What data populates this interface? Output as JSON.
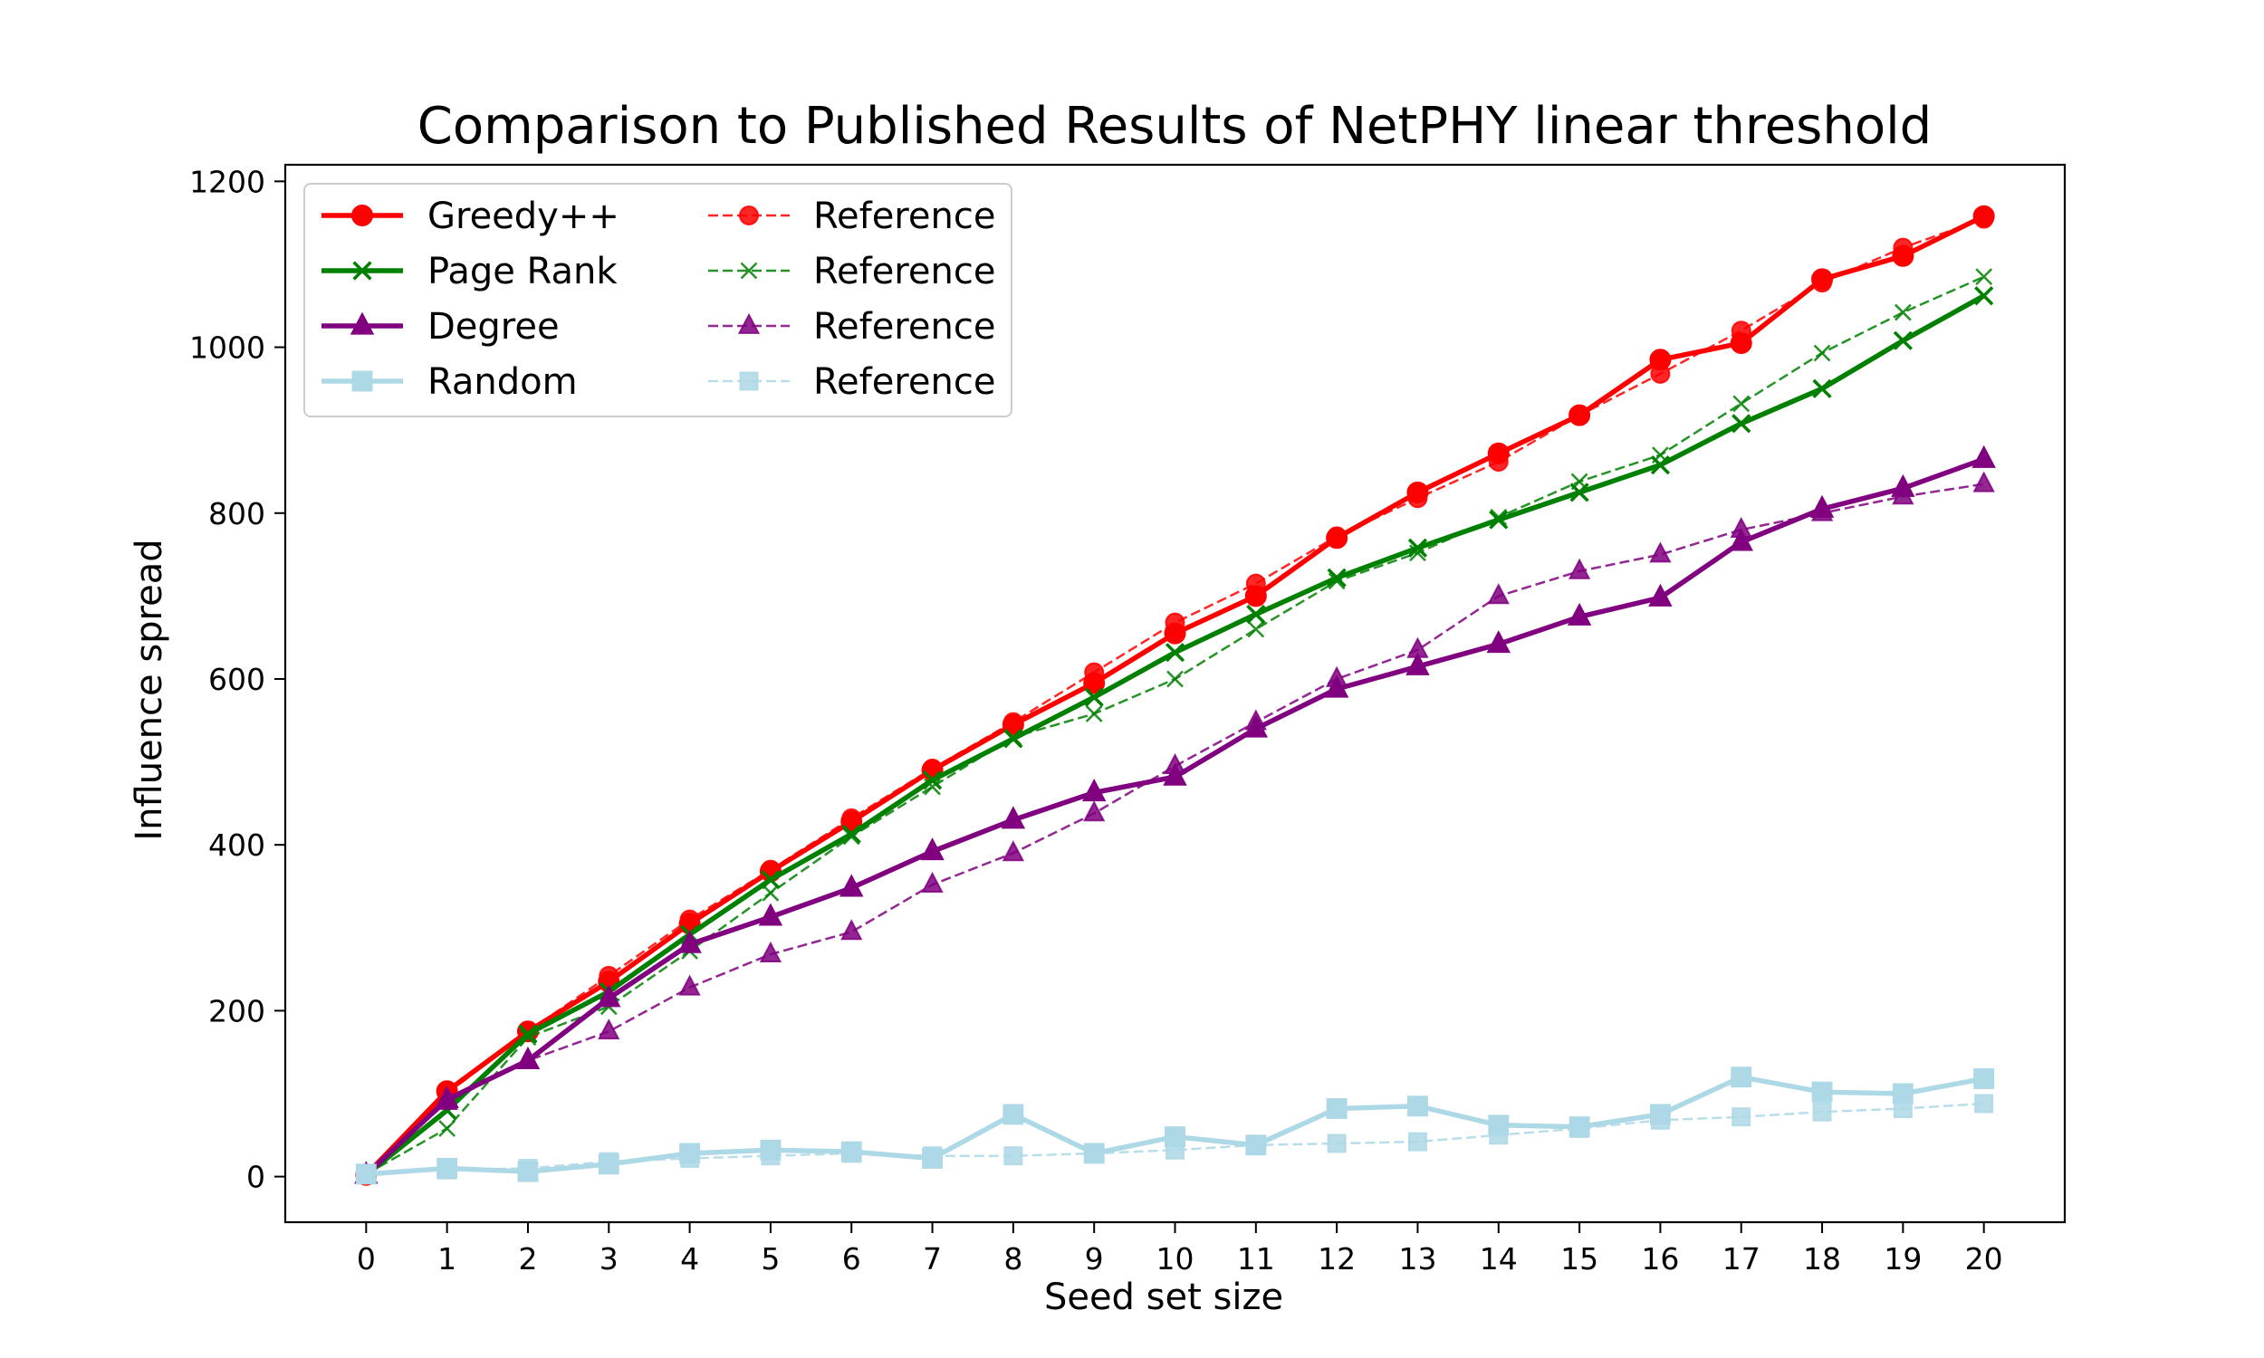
{
  "chart_data": {
    "type": "line",
    "title": "Comparison to Published Results of NetPHY linear threshold",
    "xlabel": "Seed set size",
    "ylabel": "Influence spread",
    "xlim": [
      -1,
      21
    ],
    "ylim": [
      -55,
      1220
    ],
    "xticks": [
      0,
      1,
      2,
      3,
      4,
      5,
      6,
      7,
      8,
      9,
      10,
      11,
      12,
      13,
      14,
      15,
      16,
      17,
      18,
      19,
      20
    ],
    "yticks": [
      0,
      200,
      400,
      600,
      800,
      1000,
      1200
    ],
    "grid": false,
    "legend_position": "top-left",
    "x": [
      0,
      1,
      2,
      3,
      4,
      5,
      6,
      7,
      8,
      9,
      10,
      11,
      12,
      13,
      14,
      15,
      16,
      17,
      18,
      19,
      20
    ],
    "series": [
      {
        "name": "Greedy++",
        "color": "#ff0000",
        "style": "solid",
        "marker": "circle",
        "values": [
          2,
          103,
          175,
          235,
          305,
          368,
          428,
          490,
          545,
          595,
          655,
          700,
          770,
          825,
          872,
          918,
          985,
          1005,
          1082,
          1110,
          1158
        ]
      },
      {
        "name": "Page Rank",
        "color": "#008000",
        "style": "solid",
        "marker": "x",
        "values": [
          2,
          80,
          172,
          223,
          292,
          358,
          413,
          478,
          528,
          578,
          632,
          678,
          722,
          758,
          792,
          825,
          858,
          908,
          950,
          1008,
          1062
        ]
      },
      {
        "name": "Degree",
        "color": "#800080",
        "style": "solid",
        "marker": "triangle",
        "values": [
          2,
          93,
          140,
          215,
          280,
          313,
          348,
          392,
          430,
          463,
          482,
          540,
          588,
          615,
          642,
          675,
          698,
          765,
          805,
          830,
          865
        ]
      },
      {
        "name": "Random",
        "color": "#add8e6",
        "style": "solid",
        "marker": "square",
        "values": [
          3,
          10,
          6,
          15,
          28,
          32,
          30,
          22,
          75,
          28,
          48,
          38,
          82,
          85,
          62,
          60,
          75,
          120,
          102,
          100,
          118
        ]
      },
      {
        "name": "Reference",
        "color": "#ff0000",
        "style": "dashed",
        "marker": "circle",
        "values": [
          3,
          100,
          175,
          242,
          310,
          370,
          432,
          492,
          548,
          608,
          668,
          715,
          772,
          818,
          862,
          918,
          968,
          1020,
          1078,
          1120,
          1155
        ]
      },
      {
        "name": "Reference",
        "color": "#008000",
        "style": "dashed",
        "marker": "x",
        "values": [
          3,
          58,
          168,
          205,
          272,
          342,
          410,
          470,
          530,
          558,
          600,
          660,
          718,
          752,
          795,
          838,
          870,
          932,
          993,
          1042,
          1085
        ]
      },
      {
        "name": "Reference",
        "color": "#800080",
        "style": "dashed",
        "marker": "triangle",
        "values": [
          3,
          90,
          140,
          175,
          228,
          268,
          295,
          352,
          390,
          438,
          495,
          548,
          600,
          635,
          700,
          730,
          750,
          780,
          800,
          820,
          835
        ]
      },
      {
        "name": "Reference",
        "color": "#add8e6",
        "style": "dashed",
        "marker": "square",
        "values": [
          3,
          8,
          10,
          18,
          22,
          25,
          28,
          25,
          25,
          28,
          32,
          38,
          40,
          42,
          50,
          58,
          68,
          72,
          78,
          82,
          88
        ]
      }
    ]
  }
}
